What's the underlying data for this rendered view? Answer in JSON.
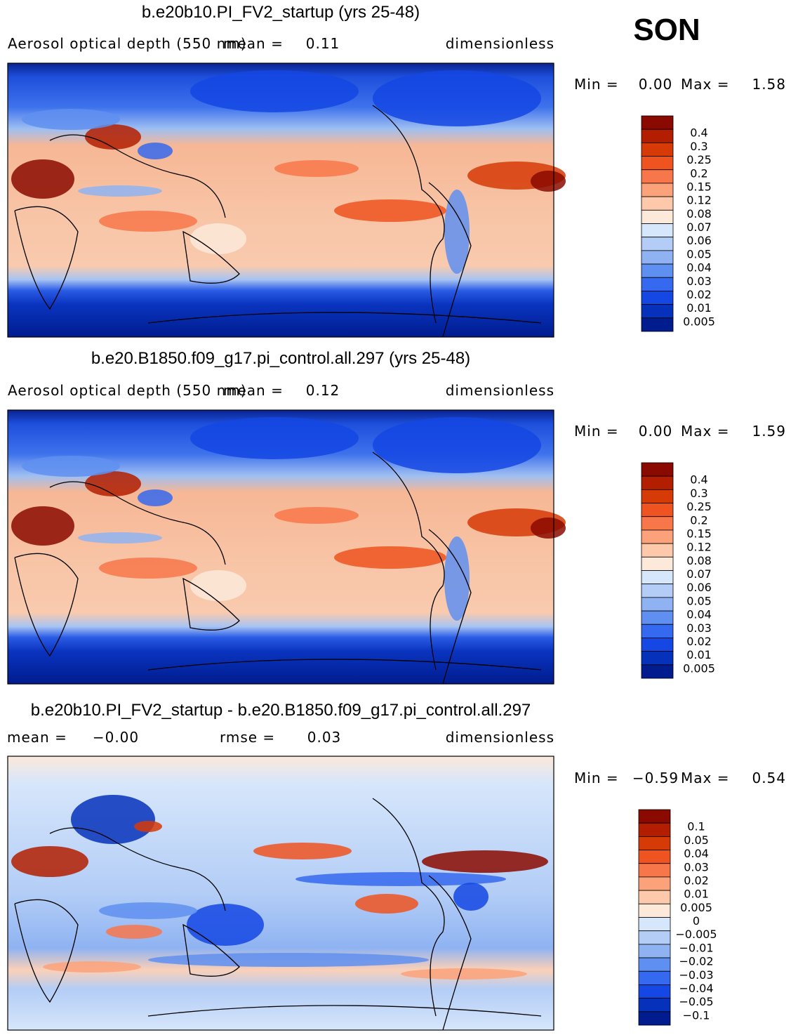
{
  "season": "SON",
  "colorbar_colors": [
    "#8b0a00",
    "#b31e00",
    "#d63a06",
    "#ef5320",
    "#f8774a",
    "#fba27a",
    "#fdc9aa",
    "#fde9da",
    "#d6e6fb",
    "#b3cdf6",
    "#8fb3f2",
    "#5f8ff0",
    "#3569ef",
    "#1447e3",
    "#0632bb",
    "#001c8e"
  ],
  "panels": [
    {
      "title": "b.e20b10.PI_FV2_startup (yrs 25-48)",
      "variable": "Aerosol optical depth (550 nm)",
      "stats": [
        {
          "label": "mean =",
          "value": "0.11"
        }
      ],
      "units": "dimensionless",
      "min_label": "Min =",
      "min": "0.00",
      "max_label": "Max =",
      "max": "1.58",
      "levels": [
        "0.4",
        "0.3",
        "0.25",
        "0.2",
        "0.15",
        "0.12",
        "0.08",
        "0.07",
        "0.06",
        "0.05",
        "0.04",
        "0.03",
        "0.02",
        "0.01",
        "0.005"
      ]
    },
    {
      "title": "b.e20.B1850.f09_g17.pi_control.all.297 (yrs 25-48)",
      "variable": "Aerosol optical depth (550 nm)",
      "stats": [
        {
          "label": "mean =",
          "value": "0.12"
        }
      ],
      "units": "dimensionless",
      "min_label": "Min =",
      "min": "0.00",
      "max_label": "Max =",
      "max": "1.59",
      "levels": [
        "0.4",
        "0.3",
        "0.25",
        "0.2",
        "0.15",
        "0.12",
        "0.08",
        "0.07",
        "0.06",
        "0.05",
        "0.04",
        "0.03",
        "0.02",
        "0.01",
        "0.005"
      ]
    },
    {
      "title": "b.e20b10.PI_FV2_startup - b.e20.B1850.f09_g17.pi_control.all.297",
      "stats": [
        {
          "label": "mean =",
          "value": "−0.00"
        },
        {
          "label": "rmse =",
          "value": "0.03"
        }
      ],
      "units": "dimensionless",
      "min_label": "Min =",
      "min": "−0.59",
      "max_label": "Max =",
      "max": "0.54",
      "levels": [
        "0.1",
        "0.05",
        "0.04",
        "0.03",
        "0.02",
        "0.01",
        "0.005",
        "0",
        "−0.005",
        "−0.01",
        "−0.02",
        "−0.03",
        "−0.04",
        "−0.05",
        "−0.1"
      ]
    }
  ]
}
